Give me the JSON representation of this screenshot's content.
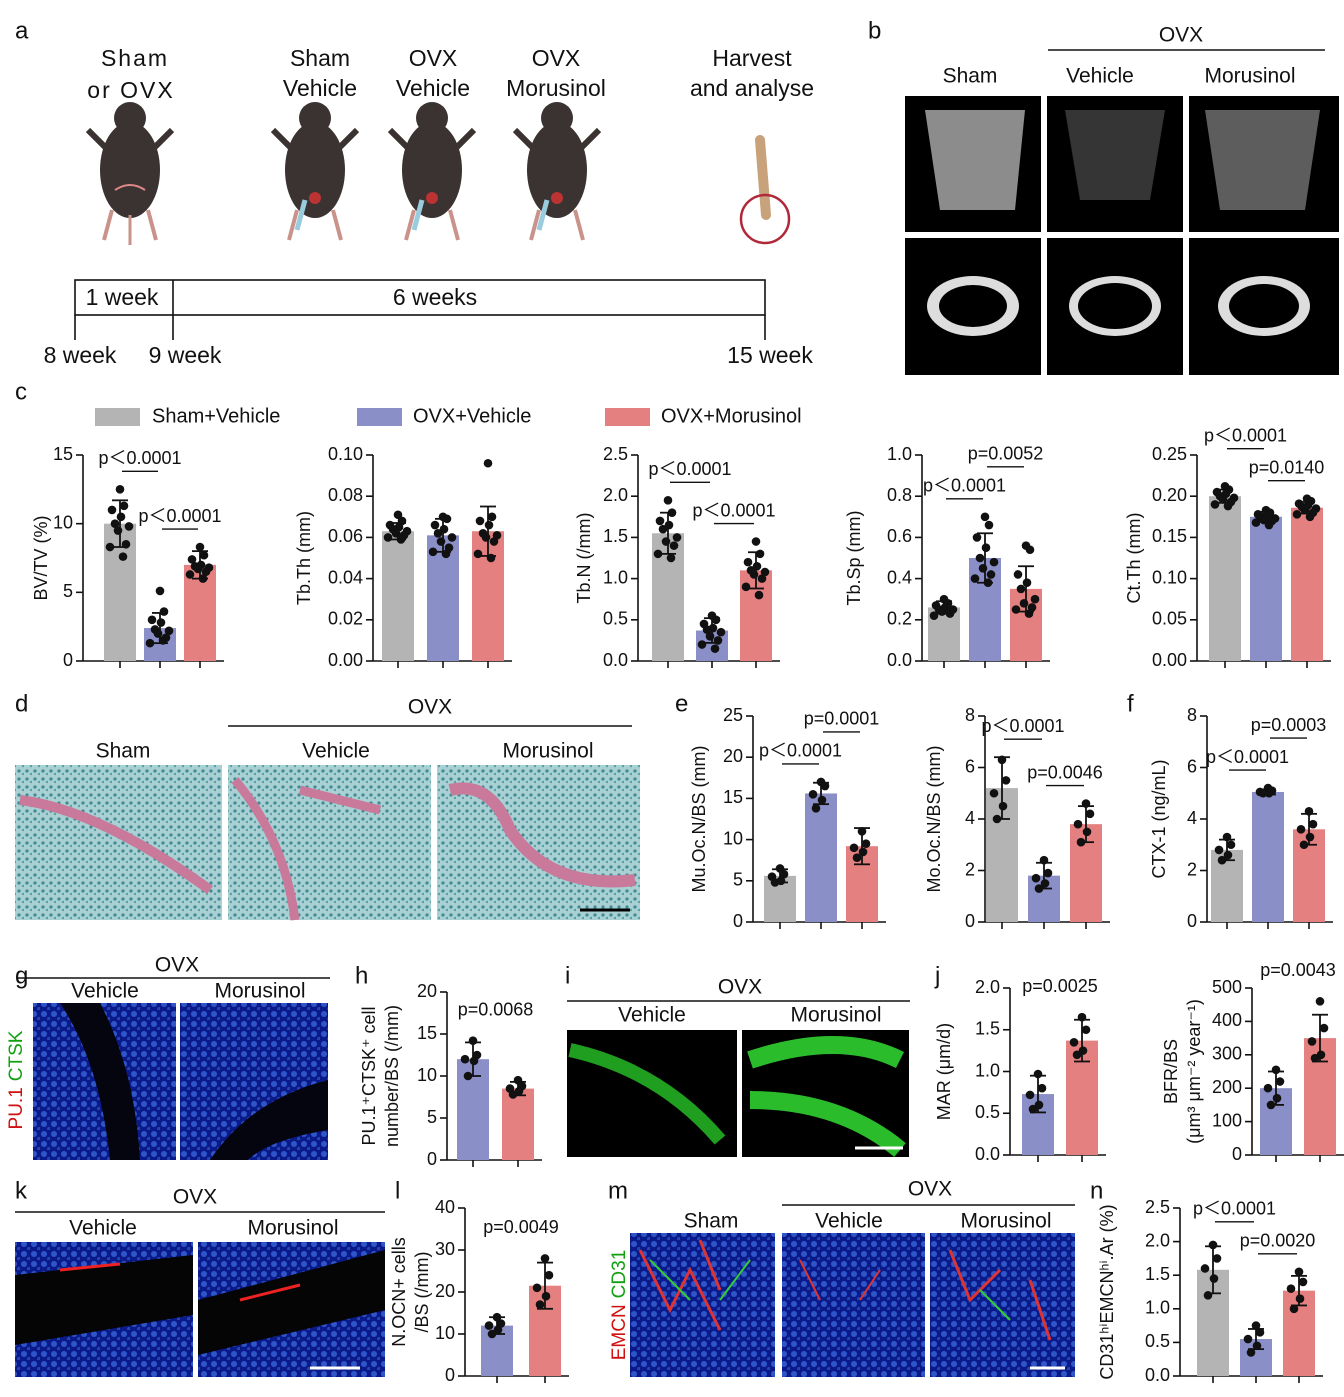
{
  "figure": {
    "panel_labels": [
      "a",
      "b",
      "c",
      "d",
      "e",
      "f",
      "g",
      "h",
      "i",
      "j",
      "k",
      "l",
      "m",
      "n"
    ],
    "a": {
      "start": [
        "Sham",
        "or OVX"
      ],
      "groups": [
        [
          "Sham",
          "Vehicle"
        ],
        [
          "OVX",
          "Vehicle"
        ],
        [
          "OVX",
          "Morusinol"
        ],
        [
          "Harvest",
          "and analyse"
        ]
      ],
      "intervals": [
        "1 week",
        "6 weeks"
      ],
      "timepoints": [
        "8 week",
        "9 week",
        "15 week"
      ]
    },
    "b": {
      "group": "OVX",
      "columns": [
        "Sham",
        "Vehicle",
        "Morusinol"
      ]
    },
    "d": {
      "group": "OVX",
      "columns": [
        "Sham",
        "Vehicle",
        "Morusinol"
      ]
    },
    "g": {
      "group": "OVX",
      "columns": [
        "Vehicle",
        "Morusinol"
      ],
      "stains": [
        "PU.1",
        "CTSK"
      ]
    },
    "i": {
      "group": "OVX",
      "columns": [
        "Vehicle",
        "Morusinol"
      ]
    },
    "k": {
      "group": "OVX",
      "columns": [
        "Vehicle",
        "Morusinol"
      ]
    },
    "m": {
      "group": "OVX",
      "columns": [
        "Sham",
        "Vehicle",
        "Morusinol"
      ],
      "stains": [
        "EMCN",
        "CD31"
      ]
    },
    "legend": {
      "names": [
        "Sham+Vehicle",
        "OVX+Vehicle",
        "OVX+Morusinol"
      ],
      "colors": [
        "#b4b4b4",
        "#8b8fc8",
        "#e58080"
      ]
    }
  },
  "chart_data": [
    {
      "type": "bar",
      "ylabel": "BV/TV (%)",
      "ylim": [
        0,
        15
      ],
      "yticks": [
        0,
        5,
        10,
        15
      ],
      "values": [
        10,
        2.4,
        7
      ],
      "errors": [
        1.7,
        1.1,
        1.0
      ],
      "colors": [
        "#b4b4b4",
        "#8b8fc8",
        "#e58080"
      ],
      "points": [
        [
          12.5,
          11.3,
          11,
          10.5,
          10,
          9.8,
          9.5,
          8.5,
          8.3,
          7.6
        ],
        [
          5.1,
          3.6,
          3,
          2.8,
          2.3,
          2.2,
          2,
          1.7,
          1.3,
          1.5
        ],
        [
          8.3,
          7.7,
          7.4,
          7,
          6.9,
          6.8,
          6.7,
          6.5,
          6.3,
          6
        ]
      ],
      "annotations": [
        "p＜0.0001",
        "p＜0.0001"
      ]
    },
    {
      "type": "bar",
      "ylabel": "Tb.Th (mm)",
      "ylim": [
        0,
        0.1
      ],
      "yticks": [
        {
          "value": 0,
          "label": "0.00"
        },
        {
          "value": 0.02,
          "label": "0.02"
        },
        {
          "value": 0.04,
          "label": "0.04"
        },
        {
          "value": 0.06,
          "label": "0.06"
        },
        {
          "value": 0.08,
          "label": "0.08"
        },
        {
          "value": 0.1,
          "label": "0.10"
        }
      ],
      "values": [
        0.063,
        0.061,
        0.063
      ],
      "errors": [
        0.004,
        0.008,
        0.012
      ],
      "colors": [
        "#b4b4b4",
        "#8b8fc8",
        "#e58080"
      ],
      "points": [
        [
          0.071,
          0.068,
          0.066,
          0.065,
          0.064,
          0.063,
          0.062,
          0.061,
          0.06,
          0.059
        ],
        [
          0.07,
          0.069,
          0.066,
          0.064,
          0.062,
          0.06,
          0.058,
          0.055,
          0.053,
          0.052
        ],
        [
          0.096,
          0.07,
          0.068,
          0.066,
          0.062,
          0.061,
          0.06,
          0.058,
          0.052,
          0.05
        ]
      ],
      "annotations": []
    },
    {
      "type": "bar",
      "ylabel": "Tb.N (/mm)",
      "ylim": [
        0,
        2.5
      ],
      "yticks": [
        {
          "value": 0,
          "label": "0.0"
        },
        0.5,
        {
          "value": 1,
          "label": "1.0"
        },
        1.5,
        {
          "value": 2,
          "label": "2.0"
        },
        2.5
      ],
      "values": [
        1.55,
        0.37,
        1.1
      ],
      "errors": [
        0.25,
        0.15,
        0.22
      ],
      "colors": [
        "#b4b4b4",
        "#8b8fc8",
        "#e58080"
      ],
      "points": [
        [
          1.95,
          1.8,
          1.7,
          1.65,
          1.6,
          1.5,
          1.45,
          1.4,
          1.3,
          1.25
        ],
        [
          0.55,
          0.5,
          0.45,
          0.4,
          0.38,
          0.35,
          0.3,
          0.25,
          0.2,
          0.15
        ],
        [
          1.45,
          1.3,
          1.2,
          1.15,
          1.1,
          1.08,
          1.05,
          1.0,
          0.9,
          0.8
        ]
      ],
      "annotations": [
        "p＜0.0001",
        "p＜0.0001"
      ]
    },
    {
      "type": "bar",
      "ylabel": "Tb.Sp (mm)",
      "ylim": [
        0,
        1
      ],
      "yticks": [
        {
          "value": 0,
          "label": "0.0"
        },
        0.2,
        0.4,
        0.6,
        0.8,
        {
          "value": 1,
          "label": "1.0"
        }
      ],
      "values": [
        0.26,
        0.5,
        0.35
      ],
      "errors": [
        0.03,
        0.12,
        0.11
      ],
      "colors": [
        "#b4b4b4",
        "#8b8fc8",
        "#e58080"
      ],
      "points": [
        [
          0.3,
          0.28,
          0.27,
          0.26,
          0.25,
          0.25,
          0.24,
          0.23,
          0.22,
          0.27
        ],
        [
          0.7,
          0.66,
          0.6,
          0.55,
          0.5,
          0.48,
          0.45,
          0.42,
          0.4,
          0.38
        ],
        [
          0.56,
          0.54,
          0.42,
          0.38,
          0.35,
          0.3,
          0.28,
          0.26,
          0.25,
          0.23
        ]
      ],
      "annotations": [
        "p＜0.0001",
        "p=0.0052"
      ]
    },
    {
      "type": "bar",
      "ylabel": "Ct.Th (mm)",
      "ylim": [
        0,
        0.25
      ],
      "yticks": [
        {
          "value": 0,
          "label": "0.00"
        },
        0.05,
        {
          "value": 0.1,
          "label": "0.10"
        },
        0.15,
        {
          "value": 0.2,
          "label": "0.20"
        },
        0.25
      ],
      "values": [
        0.2,
        0.175,
        0.186
      ],
      "errors": [
        0.008,
        0.006,
        0.007
      ],
      "colors": [
        "#b4b4b4",
        "#8b8fc8",
        "#e58080"
      ],
      "points": [
        [
          0.212,
          0.208,
          0.205,
          0.203,
          0.2,
          0.198,
          0.196,
          0.193,
          0.19,
          0.188
        ],
        [
          0.183,
          0.18,
          0.178,
          0.176,
          0.175,
          0.173,
          0.171,
          0.17,
          0.168,
          0.165
        ],
        [
          0.197,
          0.194,
          0.191,
          0.189,
          0.187,
          0.185,
          0.183,
          0.18,
          0.178,
          0.175
        ]
      ],
      "annotations": [
        "p＜0.0001",
        "p=0.0140"
      ]
    },
    {
      "type": "bar",
      "ylabel": "Mu.Oc.N/BS (mm)",
      "ylim": [
        0,
        25
      ],
      "yticks": [
        0,
        5,
        10,
        15,
        20,
        25
      ],
      "values": [
        5.6,
        15.6,
        9.2
      ],
      "errors": [
        0.8,
        1.3,
        2.2
      ],
      "colors": [
        "#b4b4b4",
        "#8b8fc8",
        "#e58080"
      ],
      "points": [
        [
          6.5,
          5.8,
          5.5,
          5,
          4.8
        ],
        [
          17,
          16.5,
          15.5,
          14.8,
          13.8
        ],
        [
          11,
          9.5,
          9,
          8.5,
          7.8
        ]
      ],
      "annotations": [
        "p＜0.0001",
        "p=0.0001"
      ]
    },
    {
      "type": "bar",
      "ylabel": "Mo.Oc.N/BS (mm)",
      "ylim": [
        0,
        8
      ],
      "yticks": [
        0,
        2,
        4,
        6,
        8
      ],
      "values": [
        5.2,
        1.8,
        3.8
      ],
      "errors": [
        1.2,
        0.5,
        0.7
      ],
      "colors": [
        "#b4b4b4",
        "#8b8fc8",
        "#e58080"
      ],
      "points": [
        [
          6.3,
          5.5,
          5,
          4.5,
          4
        ],
        [
          2.4,
          1.9,
          1.7,
          1.5,
          1.3
        ],
        [
          4.6,
          4.2,
          3.8,
          3.5,
          3.1
        ]
      ],
      "annotations": [
        "p＜0.0001",
        "p=0.0046"
      ]
    },
    {
      "type": "bar",
      "ylabel": "CTX-1 (ng/mL)",
      "ylim": [
        0,
        8
      ],
      "yticks": [
        0,
        2,
        4,
        6,
        8
      ],
      "values": [
        2.8,
        5.05,
        3.6
      ],
      "errors": [
        0.4,
        0.1,
        0.6
      ],
      "colors": [
        "#b4b4b4",
        "#8b8fc8",
        "#e58080"
      ],
      "points": [
        [
          3.3,
          3,
          2.8,
          2.6,
          2.4
        ],
        [
          5.2,
          5.1,
          5.05,
          5,
          5
        ],
        [
          4.3,
          3.8,
          3.6,
          3.3,
          3
        ]
      ],
      "annotations": [
        "p＜0.0001",
        "p=0.0003"
      ]
    },
    {
      "type": "bar",
      "ylabel": [
        "PU.1⁺CTSK⁺ cell",
        "number/BS (/mm)"
      ],
      "ylim": [
        0,
        20
      ],
      "yticks": [
        0,
        5,
        10,
        15,
        20
      ],
      "values": [
        12,
        8.5
      ],
      "errors": [
        2,
        0.8
      ],
      "colors": [
        "#8b8fc8",
        "#e58080"
      ],
      "points": [
        [
          14.2,
          12.5,
          12,
          11.8,
          10
        ],
        [
          9.5,
          8.8,
          8.5,
          8.2,
          7.8
        ]
      ],
      "annotations": [
        "p=0.0068"
      ]
    },
    {
      "type": "bar",
      "ylabel": "MAR (μm/d)",
      "ylim": [
        0,
        2
      ],
      "yticks": [
        {
          "value": 0,
          "label": "0.0"
        },
        0.5,
        {
          "value": 1,
          "label": "1.0"
        },
        1.5,
        {
          "value": 2,
          "label": "2.0"
        }
      ],
      "values": [
        0.73,
        1.37
      ],
      "errors": [
        0.22,
        0.25
      ],
      "colors": [
        "#8b8fc8",
        "#e58080"
      ],
      "points": [
        [
          0.97,
          0.8,
          0.72,
          0.6,
          0.55
        ],
        [
          1.65,
          1.5,
          1.35,
          1.25,
          1.2
        ]
      ],
      "annotations": [
        "p=0.0025"
      ]
    },
    {
      "type": "bar",
      "ylabel": [
        "BFR/BS",
        "(μm³ μm⁻² year⁻¹)"
      ],
      "ylim": [
        0,
        500
      ],
      "yticks": [
        0,
        100,
        200,
        300,
        400,
        500
      ],
      "values": [
        200,
        350
      ],
      "errors": [
        50,
        70
      ],
      "colors": [
        "#8b8fc8",
        "#e58080"
      ],
      "points": [
        [
          255,
          220,
          200,
          170,
          150
        ],
        [
          460,
          380,
          340,
          300,
          290
        ]
      ],
      "annotations": [
        "p=0.0043"
      ]
    },
    {
      "type": "bar",
      "ylabel": [
        "N.OCN+ cells",
        "/BS (/mm)"
      ],
      "ylim": [
        0,
        40
      ],
      "yticks": [
        0,
        10,
        20,
        30,
        40
      ],
      "values": [
        12,
        21.5
      ],
      "errors": [
        2,
        5.5
      ],
      "colors": [
        "#8b8fc8",
        "#e58080"
      ],
      "points": [
        [
          14,
          12.5,
          12,
          11,
          10
        ],
        [
          28,
          24,
          21,
          19,
          17
        ]
      ],
      "annotations": [
        "p=0.0049"
      ]
    },
    {
      "type": "bar",
      "ylabel": "CD31ʰⁱEMCNʰⁱ.Ar (%)",
      "ylim": [
        0,
        2.5
      ],
      "yticks": [
        {
          "value": 0,
          "label": "0.0"
        },
        0.5,
        {
          "value": 1,
          "label": "1.0"
        },
        1.5,
        {
          "value": 2,
          "label": "2.0"
        },
        2.5
      ],
      "values": [
        1.58,
        0.55,
        1.27
      ],
      "errors": [
        0.35,
        0.15,
        0.22
      ],
      "colors": [
        "#b4b4b4",
        "#8b8fc8",
        "#e58080"
      ],
      "points": [
        [
          1.95,
          1.75,
          1.6,
          1.45,
          1.2
        ],
        [
          0.75,
          0.65,
          0.55,
          0.45,
          0.35
        ],
        [
          1.55,
          1.4,
          1.3,
          1.15,
          1.0
        ]
      ],
      "annotations": [
        "p＜0.0001",
        "p=0.0020"
      ]
    }
  ]
}
